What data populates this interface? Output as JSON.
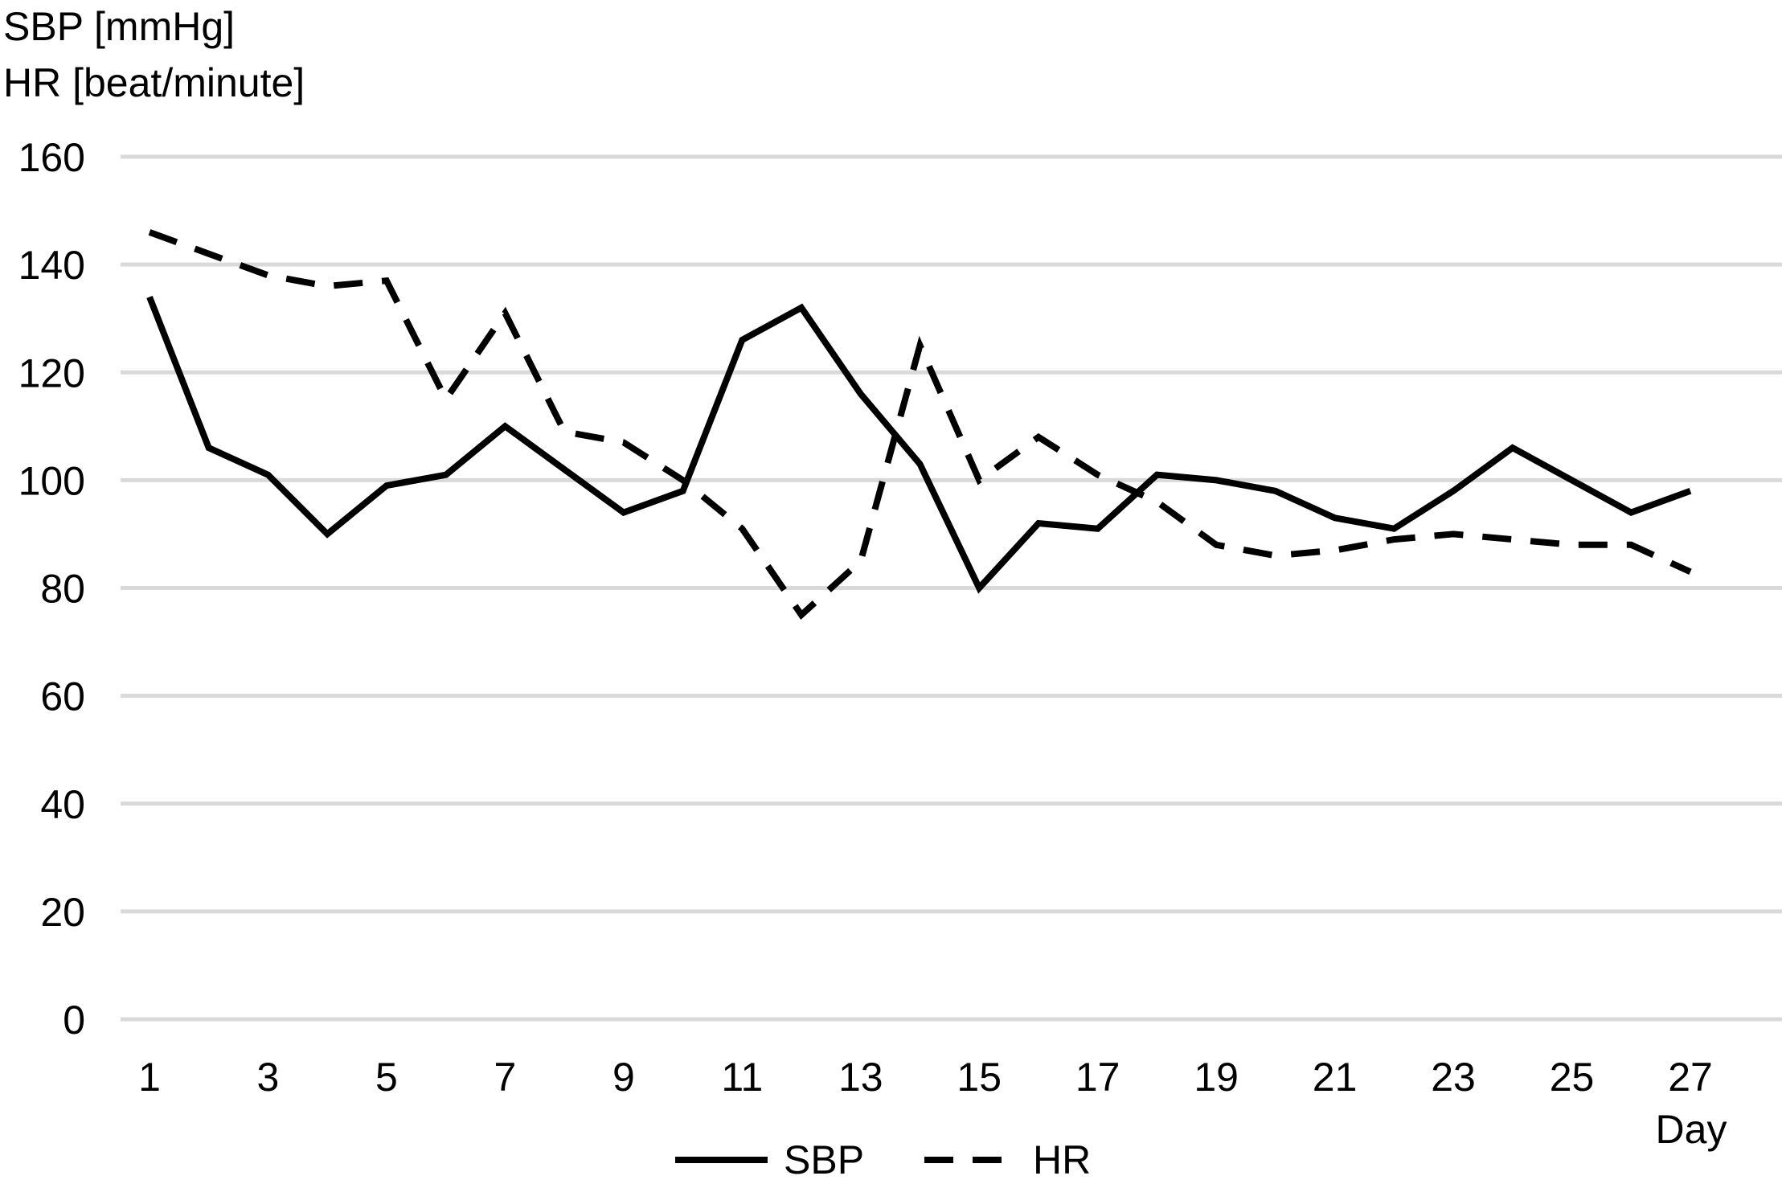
{
  "chart_data": {
    "type": "line",
    "ylabel_lines": [
      "SBP [mmHg]",
      "HR [beat/minute]"
    ],
    "xlabel": "Day",
    "ylim": [
      0,
      160
    ],
    "yticks": [
      0,
      20,
      40,
      60,
      80,
      100,
      120,
      140,
      160
    ],
    "xlim": [
      1,
      27
    ],
    "xticks": [
      1,
      3,
      5,
      7,
      9,
      11,
      13,
      15,
      17,
      19,
      21,
      23,
      25,
      27
    ],
    "grid": "horizontal",
    "legend_position": "bottom",
    "x": [
      1,
      2,
      3,
      4,
      5,
      6,
      7,
      8,
      9,
      10,
      11,
      12,
      13,
      14,
      15,
      16,
      17,
      18,
      19,
      20,
      21,
      22,
      23,
      24,
      25,
      26,
      27
    ],
    "series": [
      {
        "name": "SBP",
        "style": "solid",
        "color": "#000000",
        "values": [
          134,
          106,
          101,
          90,
          99,
          101,
          110,
          102,
          94,
          98,
          126,
          132,
          116,
          103,
          80,
          92,
          91,
          101,
          100,
          98,
          93,
          91,
          98,
          106,
          100,
          94,
          98
        ]
      },
      {
        "name": "HR",
        "style": "dashed",
        "color": "#000000",
        "values": [
          146,
          142,
          138,
          136,
          137,
          115,
          131,
          109,
          107,
          100,
          91,
          75,
          85,
          125,
          100,
          108,
          101,
          96,
          88,
          86,
          87,
          89,
          90,
          89,
          88,
          88,
          83
        ]
      }
    ]
  }
}
